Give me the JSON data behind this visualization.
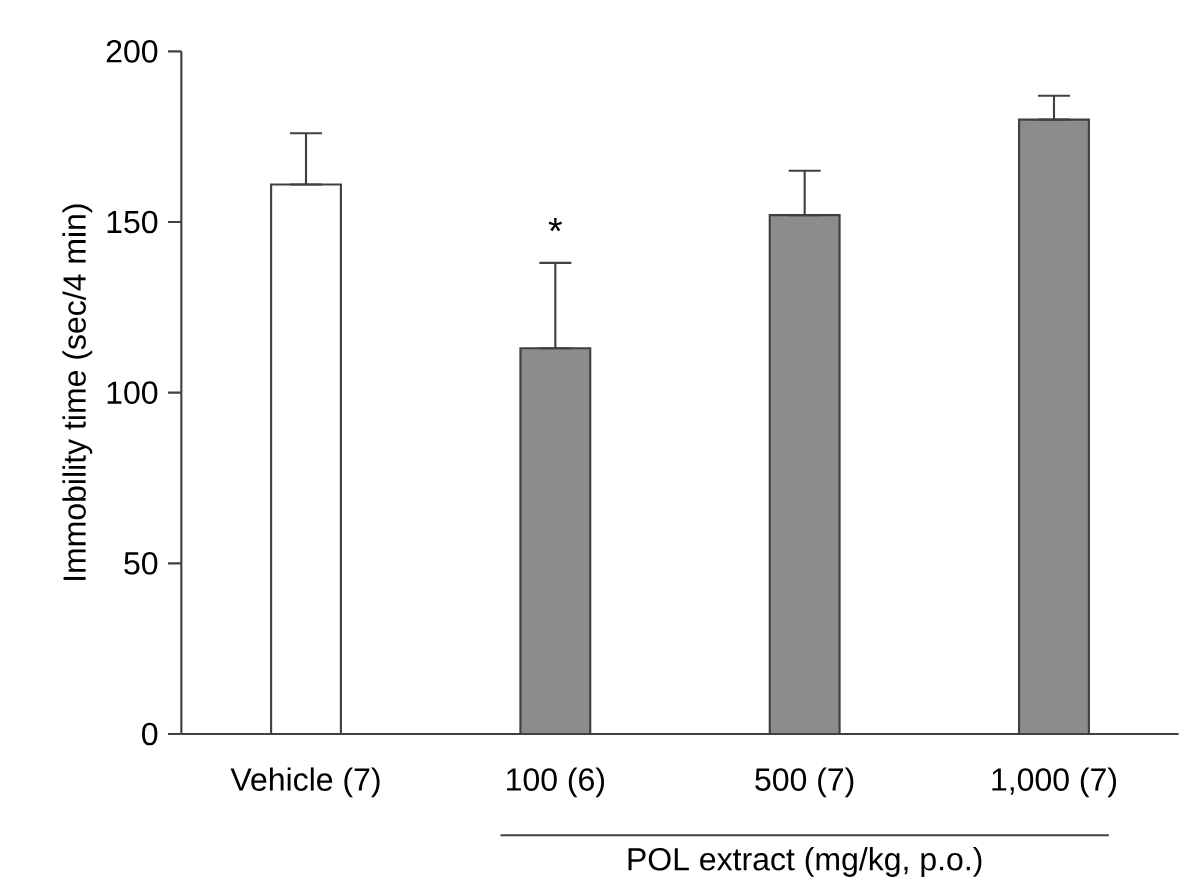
{
  "chart_data": {
    "type": "bar",
    "ylabel": "Immobility time (sec/4 min)",
    "xlabel": "POL extract (mg/kg, p.o.)",
    "categories": [
      "Vehicle (7)",
      "100 (6)",
      "500 (7)",
      "1,000 (7)"
    ],
    "values": [
      161,
      113,
      152,
      180
    ],
    "colors": [
      "#ffffff",
      "#8c8c8c",
      "#8c8c8c",
      "#8c8c8c"
    ],
    "errors": [
      [
        161,
        176
      ],
      [
        113,
        138
      ],
      [
        152,
        165
      ],
      [
        180,
        187
      ]
    ],
    "ylim": [
      0,
      200
    ],
    "yticks": [
      0,
      50,
      100,
      150,
      200
    ],
    "annotations": [
      "*"
    ],
    "grid": false
  }
}
